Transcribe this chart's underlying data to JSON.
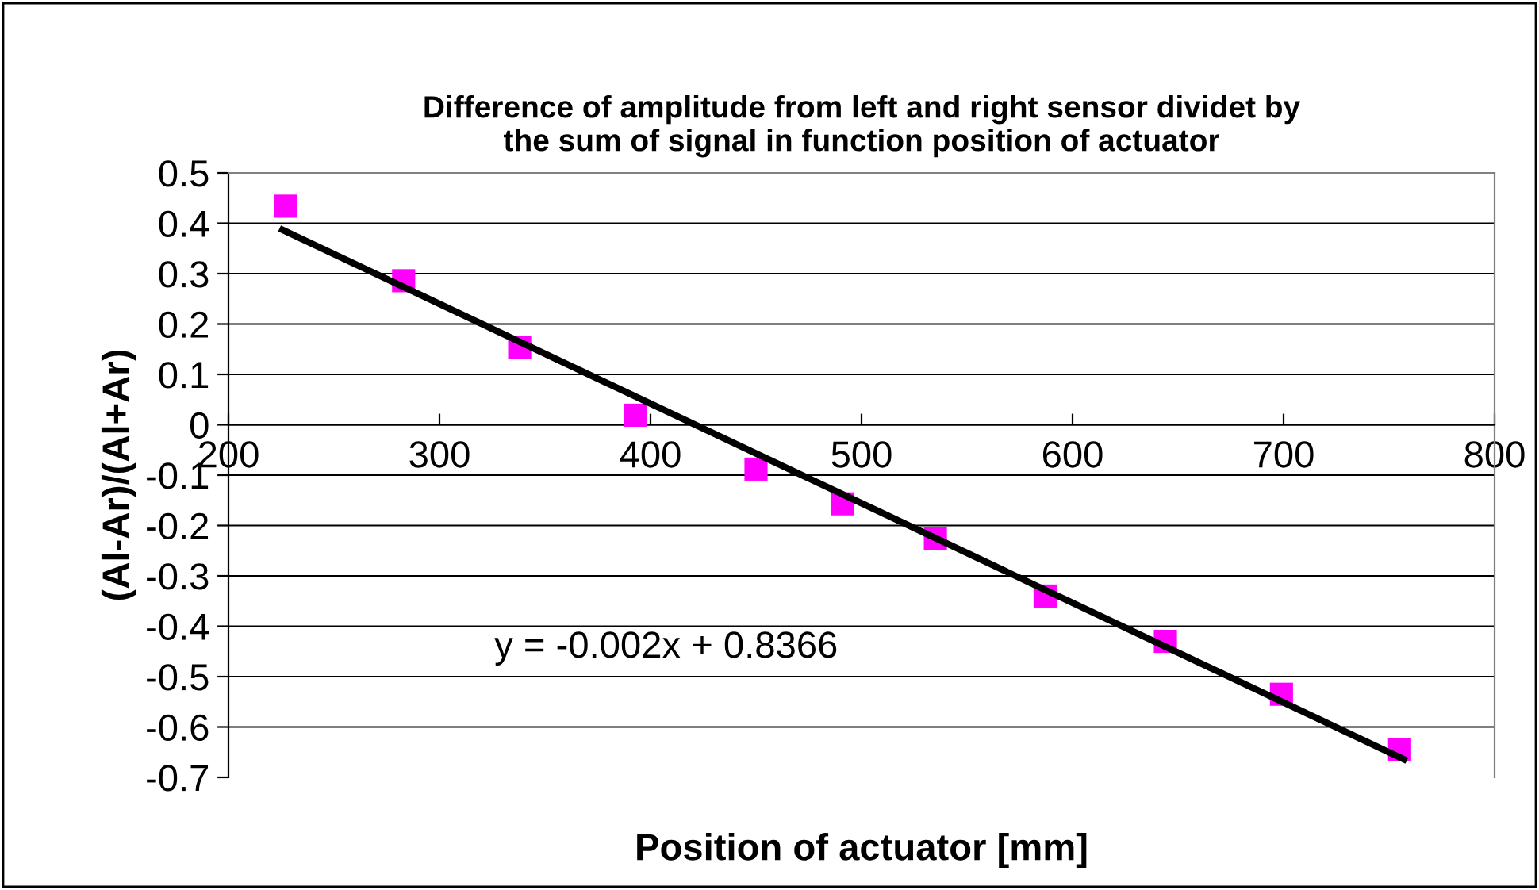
{
  "chart_data": {
    "type": "scatter",
    "title": "Difference of amplitude from left and right sensor dividet by\nthe sum of signal in function position of actuator",
    "xlabel": "Position of actuator [mm]",
    "ylabel": "(Al-Ar)/(Al+Ar)",
    "series": [
      {
        "color": "#ff00ff",
        "marker": "square",
        "x": [
          227,
          283,
          338,
          393,
          450,
          491,
          535,
          587,
          644,
          699,
          755
        ],
        "values": [
          0.434,
          0.286,
          0.154,
          0.019,
          -0.088,
          -0.157,
          -0.226,
          -0.34,
          -0.43,
          -0.535,
          -0.645
        ]
      },
      {
        "type": "line",
        "color": "#000000",
        "marker": "none",
        "line_style": "solid",
        "x": [
          225.6,
          757
        ],
        "values": [
          0.387,
          -0.664
        ]
      }
    ],
    "annotations": [
      "y = -0.002x + 0.8366"
    ],
    "xlim": [
      200,
      800
    ],
    "xticks": [
      200,
      300,
      400,
      500,
      600,
      700,
      800
    ],
    "ylim": [
      -0.7,
      0.5
    ],
    "yticks": [
      -0.7,
      -0.6,
      -0.5,
      -0.4,
      -0.3,
      -0.2,
      -0.1,
      0,
      0.1,
      0.2,
      0.3,
      0.4,
      0.5
    ],
    "grid": "y",
    "legend": false
  }
}
